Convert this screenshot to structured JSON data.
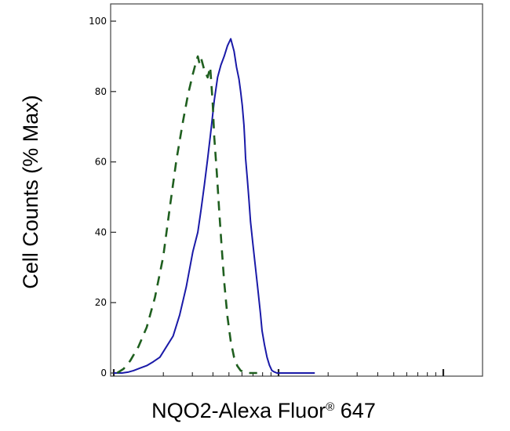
{
  "chart_data": {
    "type": "line",
    "title": "",
    "xlabel": {
      "text": "NQO2-Alexa Fluor",
      "superscript": "®",
      "suffix": " 647"
    },
    "ylabel": "Cell Counts (% Max)",
    "x_scale": "log",
    "x_tick_labels": [],
    "ylim": [
      0,
      100
    ],
    "y_ticks": [
      0,
      20,
      40,
      60,
      80,
      100
    ],
    "y_tick_labels": [
      "0",
      "20",
      "40",
      "60",
      "80",
      "100"
    ],
    "legend": "none",
    "grid": false,
    "series": [
      {
        "color": "#1a1aa8",
        "style": "solid",
        "x": [
          0,
          0.05,
          0.09,
          0.12,
          0.16,
          0.2,
          0.24,
          0.28,
          0.32,
          0.36,
          0.4,
          0.44,
          0.48,
          0.51,
          0.53,
          0.55,
          0.57,
          0.59,
          0.61,
          0.63,
          0.65,
          0.67,
          0.69,
          0.71,
          0.73,
          0.745,
          0.76,
          0.77,
          0.78,
          0.79,
          0.795,
          0.8,
          0.81,
          0.82,
          0.83,
          0.845,
          0.86,
          0.875,
          0.89,
          0.9,
          0.915,
          0.93,
          0.945,
          0.96,
          0.975,
          0.99,
          1.01,
          1.04,
          1.07,
          1.1,
          1.14,
          1.18,
          1.22
        ],
        "y": [
          0,
          0,
          0.3,
          0.7,
          1.4,
          2.1,
          3.2,
          4.5,
          7.5,
          10.5,
          16.5,
          24.5,
          34.5,
          40,
          46.5,
          53.5,
          61,
          69,
          77.5,
          84,
          87.5,
          90,
          93,
          95,
          91.5,
          87,
          83.5,
          80,
          76,
          70.5,
          66,
          61,
          55.5,
          49.5,
          43,
          36.5,
          30,
          23.5,
          17,
          12,
          8,
          4.5,
          2.2,
          0.7,
          0.3,
          0,
          0,
          0,
          0,
          0,
          0,
          0,
          0
        ]
      },
      {
        "color": "#1f5f1f",
        "style": "dashed",
        "x": [
          0.02,
          0.06,
          0.1,
          0.15,
          0.2,
          0.25,
          0.3,
          0.34,
          0.38,
          0.42,
          0.45,
          0.48,
          0.5,
          0.51,
          0.52,
          0.53,
          0.55,
          0.57,
          0.585,
          0.6,
          0.61,
          0.625,
          0.64,
          0.655,
          0.67,
          0.69,
          0.71,
          0.73,
          0.75,
          0.77,
          0.79,
          0.81,
          0.83,
          0.85,
          0.87
        ],
        "y": [
          0,
          1.2,
          3.5,
          7.5,
          13,
          21.5,
          33,
          47,
          60.5,
          71.5,
          79,
          85,
          88.5,
          90,
          88,
          89.5,
          86,
          84,
          87,
          77,
          67,
          57,
          46,
          35.5,
          26,
          16,
          9,
          4.5,
          2,
          0.7,
          0.3,
          0,
          0,
          0,
          0
        ]
      }
    ]
  }
}
